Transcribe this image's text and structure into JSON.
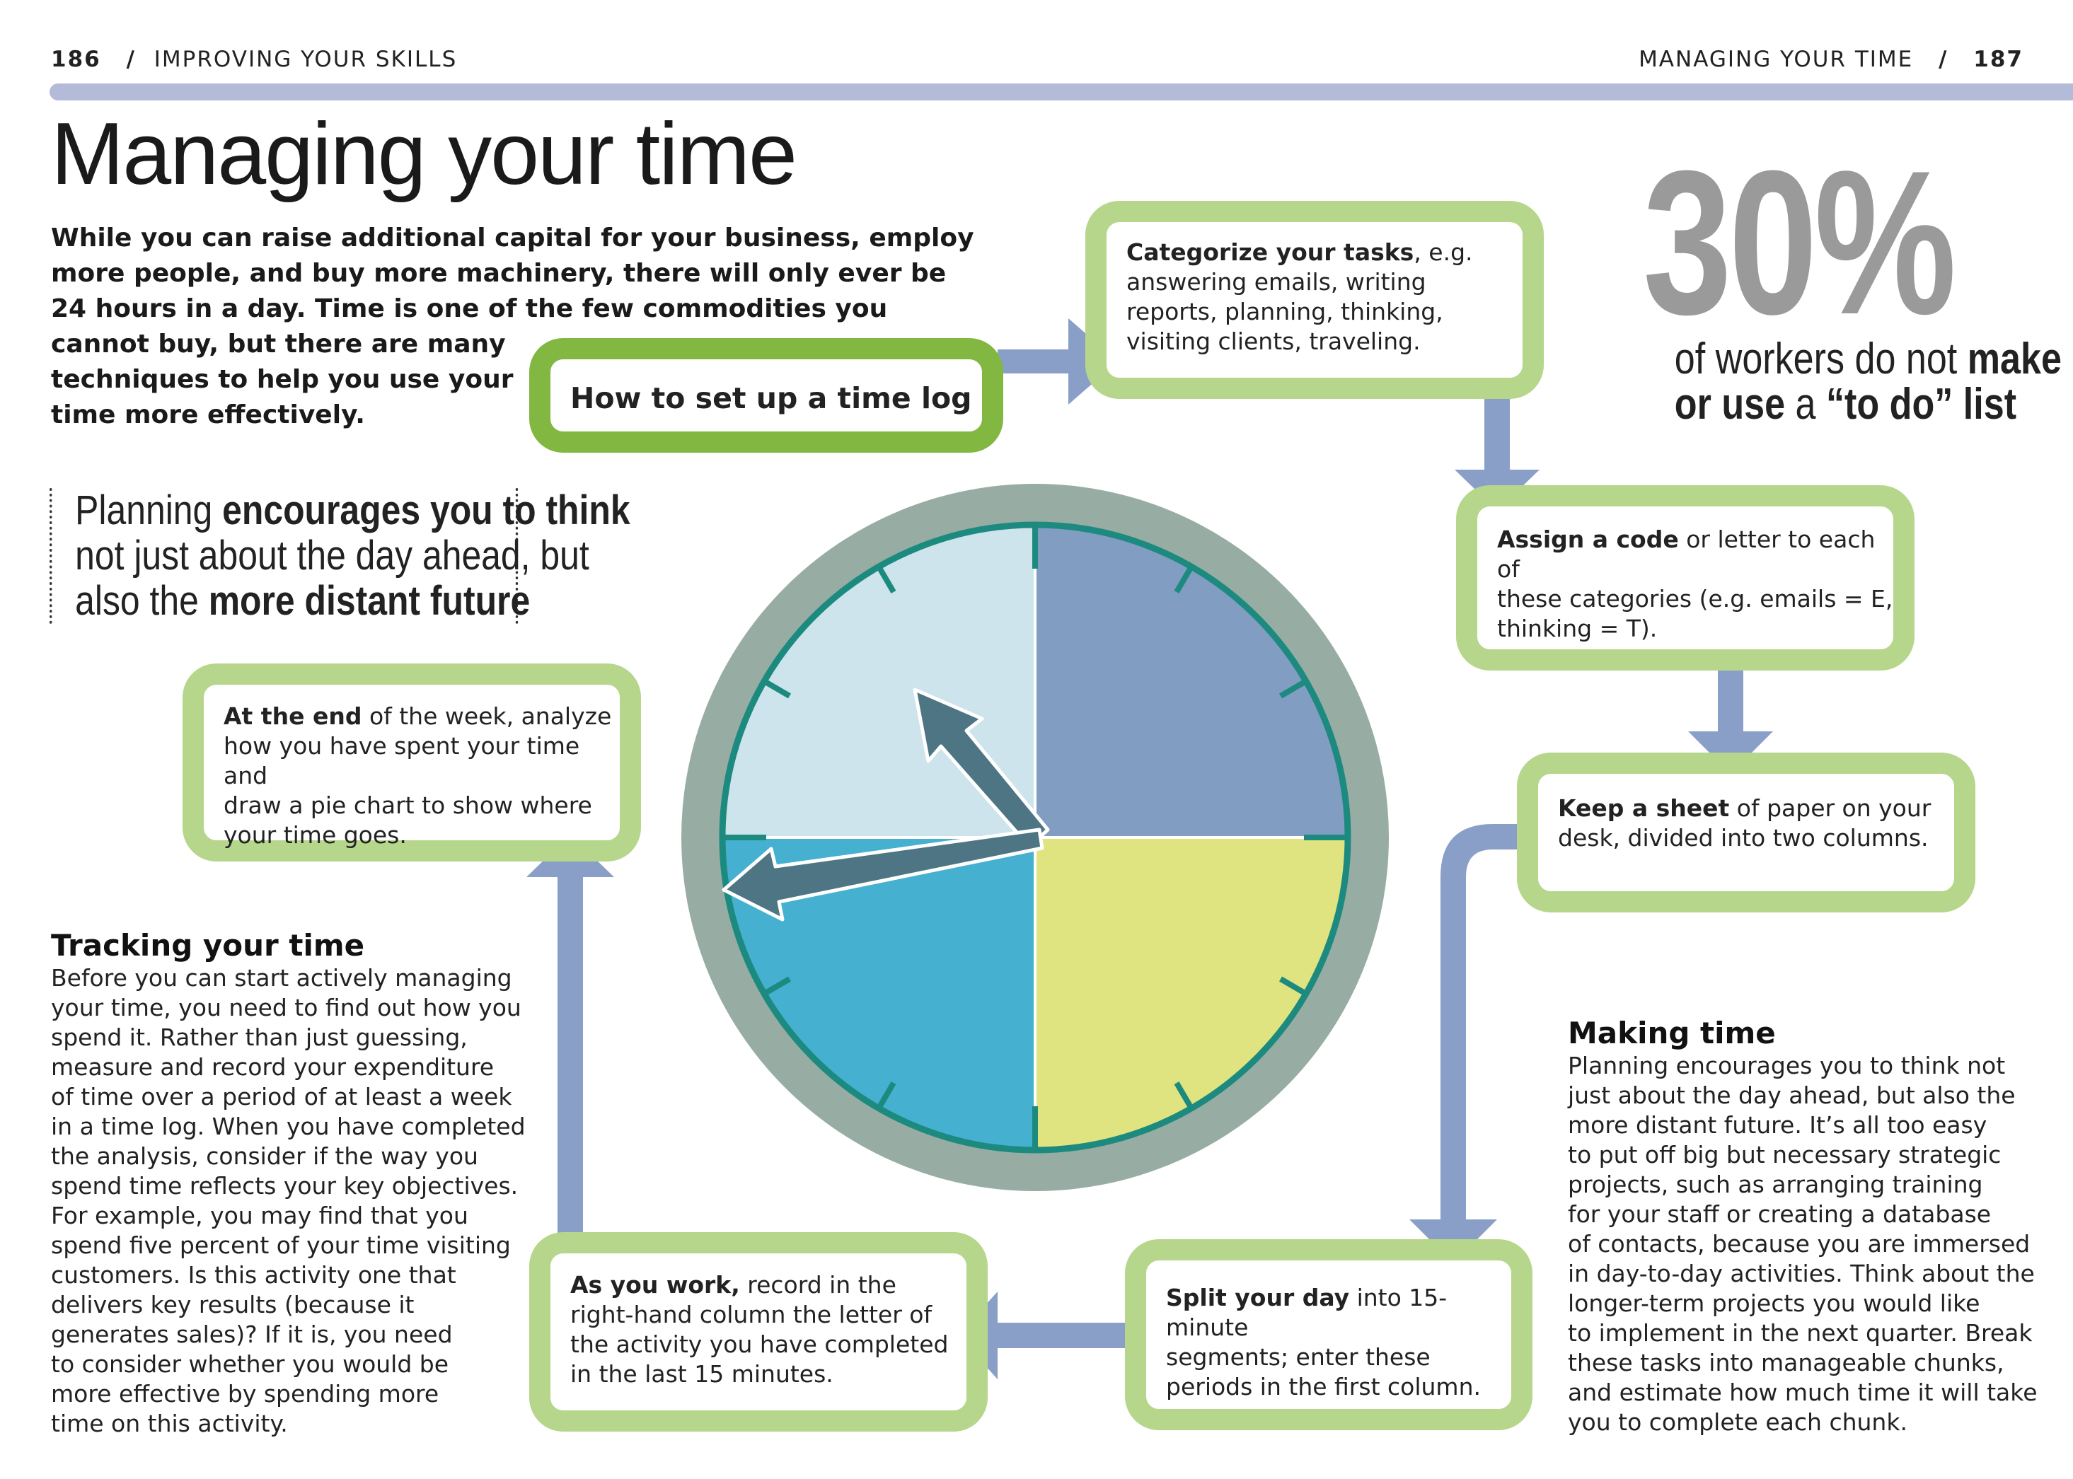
{
  "header": {
    "left_page_num": "186",
    "left_section": "IMPROVING YOUR SKILLS",
    "right_section": "MANAGING YOUR TIME",
    "right_page_num": "187",
    "separator": "/"
  },
  "title": "Managing your time",
  "intro_lines": [
    "While you can raise additional capital for your business, employ",
    "more people, and buy more machinery, there will only ever be",
    "24 hours in a day. Time is one of the few commodities you",
    "cannot buy, but there are many",
    "techniques to help you use your",
    "time more effectively."
  ],
  "pull_quote": {
    "l1_a": "Planning ",
    "l1_b": "encourages you to think",
    "l2": "not just about the day ahead, but",
    "l3_a": "also the ",
    "l3_b": "more distant future"
  },
  "stat": {
    "value": "30%",
    "l1_a": "of workers do not ",
    "l1_b": "make",
    "l2_a": "or use",
    "l2_b": " a ",
    "l2_c": "“to do” list"
  },
  "flow": {
    "start": "How to set up a time log",
    "step1": {
      "bold": "Categorize your tasks",
      "rest": ", e.g.",
      "lines": [
        "answering emails, writing",
        "reports, planning, thinking,",
        "visiting clients, traveling."
      ]
    },
    "step2": {
      "bold": "Assign a code",
      "rest": " or letter to each of",
      "lines": [
        "these categories (e.g. emails = E,",
        "thinking = T)."
      ]
    },
    "step3": {
      "bold": "Keep a sheet",
      "rest": " of paper on your",
      "lines": [
        "desk, divided into two columns."
      ]
    },
    "step4": {
      "bold": "Split your day",
      "rest": " into 15-minute",
      "lines": [
        "segments; enter these",
        "periods in the first column."
      ]
    },
    "step5": {
      "bold": "As you work,",
      "rest": " record in the",
      "lines": [
        "right-hand column the letter of",
        "the activity you have completed",
        "in the last 15 minutes."
      ]
    },
    "step6": {
      "bold": "At the end",
      "rest": " of the week, analyze",
      "lines": [
        "how you have spent your time and",
        "draw a pie chart to show where",
        "your time goes."
      ]
    }
  },
  "tracking": {
    "heading": "Tracking your time",
    "lines": [
      "Before you can start actively managing",
      "your time, you need to find out how you",
      "spend it. Rather than just guessing,",
      "measure and record your expenditure",
      "of time over a period of at least a week",
      "in a time log. When you have completed",
      "the analysis, consider if the way you",
      "spend time reflects your key objectives.",
      "For example, you may find that you",
      "spend five percent of your time visiting",
      "customers. Is this activity one that",
      "delivers key results (because it",
      "generates sales)? If it is, you need",
      "to consider whether you would be",
      "more effective by spending more",
      "time on this activity."
    ]
  },
  "making": {
    "heading": "Making time",
    "lines": [
      "Planning encourages you to think not",
      "just about the day ahead, but also the",
      "more distant future. It’s all too easy",
      "to put off big but necessary strategic",
      "projects, such as arranging training",
      "for your staff or creating a database",
      "of contacts, because you are immersed",
      "in day-to-day activities. Think about the",
      "longer-term projects you would like",
      "to implement in the next quarter. Break",
      "these tasks into manageable chunks,",
      "and estimate how much time it will take",
      "you to complete each chunk."
    ]
  },
  "colors": {
    "box_border": "#b5d68b",
    "box_border_head": "#82b741",
    "arrow": "#8a9fc7",
    "clock_rim": "#97ada3",
    "clock_ring": "#1d8a80",
    "q_top_right": "#829dc2",
    "q_bottom_right": "#dfe480",
    "q_bottom_left": "#46b0d0",
    "q_top_left": "#cde4ec",
    "hands": "#4e7583",
    "stat_number": "#9a9a9a"
  }
}
